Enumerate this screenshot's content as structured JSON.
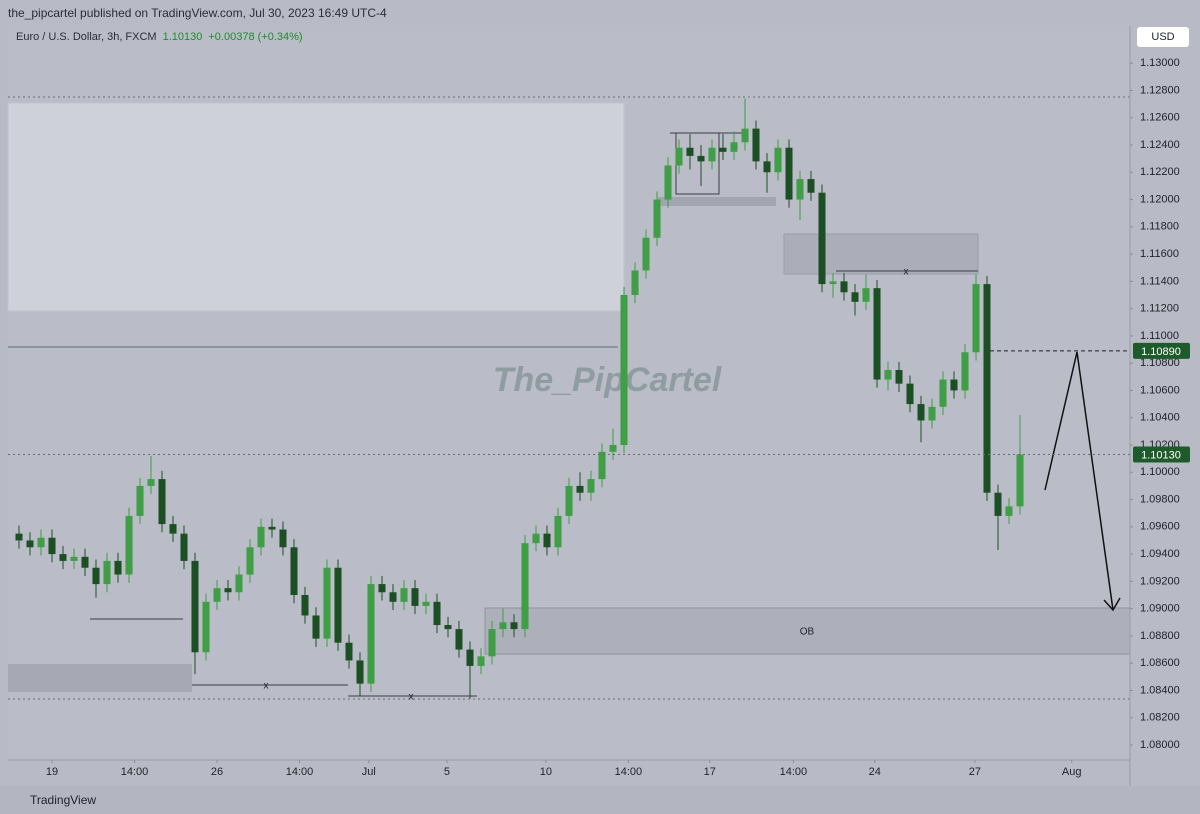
{
  "header": {
    "published": "the_pipcartel published on TradingView.com, Jul 30, 2023 16:49 UTC-4"
  },
  "footer": "TradingView",
  "chart_data": {
    "type": "candlestick",
    "title": "Euro / U.S. Dollar, 3h, FXCM",
    "last": "1.10130",
    "change": "+0.00378 (+0.34%)",
    "currency": "USD",
    "watermark": "The_PipCartel",
    "annotations": {
      "ob": "OB",
      "x_marks": [
        "x",
        "x",
        "x"
      ]
    },
    "up_color": "#3f9e46",
    "down_color": "#1d4f24",
    "open": [
      1.0955,
      1.095,
      1.0945,
      1.0952,
      1.094,
      1.0935,
      1.0938,
      1.093,
      1.0918,
      1.0935,
      1.0925,
      1.0968,
      1.099,
      1.0995,
      1.0962,
      1.0955,
      1.0935,
      1.0868,
      1.0905,
      1.0915,
      1.0912,
      1.0925,
      1.0945,
      1.096,
      1.0958,
      1.0945,
      1.091,
      1.0895,
      1.0878,
      1.093,
      1.0875,
      1.0862,
      1.0845,
      1.0918,
      1.0912,
      1.0905,
      1.0915,
      1.0902,
      1.0905,
      1.0888,
      1.0885,
      1.087,
      1.0858,
      1.0865,
      1.0885,
      1.089,
      1.0885,
      1.0948,
      1.0955,
      1.0945,
      1.0968,
      1.099,
      1.0985,
      1.0995,
      1.1015,
      1.102,
      1.113,
      1.1148,
      1.1172,
      1.12,
      1.1225,
      1.1238,
      1.1232,
      1.1228,
      1.1238,
      1.1235,
      1.1242,
      1.1252,
      1.1228,
      1.122,
      1.1238,
      1.12,
      1.1215,
      1.1205,
      1.1138,
      1.114,
      1.1132,
      1.1125,
      1.1135,
      1.1068,
      1.1075,
      1.1065,
      1.105,
      1.1038,
      1.1048,
      1.1068,
      1.106,
      1.1088,
      1.1138,
      1.0985,
      1.0968,
      1.0975
    ],
    "high": [
      1.0961,
      1.0956,
      1.0958,
      1.0958,
      1.0946,
      1.0944,
      1.0944,
      1.0936,
      1.0941,
      1.0941,
      1.0974,
      1.0996,
      1.1012,
      1.1001,
      1.0968,
      1.0961,
      1.0941,
      1.0911,
      1.0921,
      1.0921,
      1.0931,
      1.0951,
      1.0966,
      1.0966,
      1.0964,
      1.0951,
      1.0916,
      1.0901,
      1.0936,
      1.0936,
      1.0881,
      1.0868,
      1.0924,
      1.0924,
      1.0918,
      1.0921,
      1.0921,
      1.0911,
      1.0911,
      1.0894,
      1.0891,
      1.0876,
      1.0871,
      1.0891,
      1.09,
      1.0896,
      1.0954,
      1.0961,
      1.0961,
      1.0974,
      1.0996,
      1.1,
      1.1001,
      1.1021,
      1.1032,
      1.1136,
      1.1154,
      1.1178,
      1.1206,
      1.1231,
      1.1244,
      1.1248,
      1.124,
      1.1244,
      1.1248,
      1.125,
      1.1274,
      1.1258,
      1.1234,
      1.1244,
      1.1244,
      1.1221,
      1.1221,
      1.1211,
      1.1146,
      1.1146,
      1.1138,
      1.1145,
      1.1141,
      1.1081,
      1.1081,
      1.1071,
      1.1056,
      1.1054,
      1.1074,
      1.1074,
      1.1094,
      1.1145,
      1.1144,
      1.0991,
      1.0981,
      1.1042
    ],
    "low": [
      1.0944,
      1.0939,
      1.0939,
      1.0934,
      1.0929,
      1.0929,
      1.0924,
      1.0908,
      1.0912,
      1.0919,
      1.0919,
      1.0962,
      1.0984,
      1.0956,
      1.0949,
      1.0929,
      1.0852,
      1.0862,
      1.0899,
      1.0906,
      1.0906,
      1.0919,
      1.0939,
      1.0952,
      1.0939,
      1.0904,
      1.0889,
      1.0872,
      1.0872,
      1.0869,
      1.0856,
      1.0836,
      1.0839,
      1.0906,
      1.0899,
      1.0899,
      1.0896,
      1.0896,
      1.0882,
      1.0879,
      1.0864,
      1.0834,
      1.0852,
      1.0859,
      1.0879,
      1.0879,
      1.0879,
      1.0942,
      1.0939,
      1.0939,
      1.0962,
      1.0979,
      1.0979,
      1.0989,
      1.1009,
      1.1014,
      1.1124,
      1.1142,
      1.1166,
      1.1194,
      1.1219,
      1.1222,
      1.121,
      1.1222,
      1.1229,
      1.1229,
      1.1236,
      1.1222,
      1.1205,
      1.1214,
      1.1194,
      1.1185,
      1.1199,
      1.1132,
      1.1128,
      1.1126,
      1.1115,
      1.1119,
      1.1062,
      1.106,
      1.1059,
      1.1044,
      1.1022,
      1.1032,
      1.1042,
      1.1054,
      1.1054,
      1.1082,
      1.0979,
      1.0943,
      1.0962,
      1.0969
    ],
    "close": [
      1.095,
      1.0945,
      1.0952,
      1.094,
      1.0935,
      1.0938,
      1.093,
      1.0918,
      1.0935,
      1.0925,
      1.0968,
      1.099,
      1.0995,
      1.0962,
      1.0955,
      1.0935,
      1.0868,
      1.0905,
      1.0915,
      1.0912,
      1.0925,
      1.0945,
      1.096,
      1.0958,
      1.0945,
      1.091,
      1.0895,
      1.0878,
      1.093,
      1.0875,
      1.0862,
      1.0845,
      1.0918,
      1.0912,
      1.0905,
      1.0915,
      1.0902,
      1.0905,
      1.0888,
      1.0885,
      1.087,
      1.0858,
      1.0865,
      1.0885,
      1.089,
      1.0885,
      1.0948,
      1.0955,
      1.0945,
      1.0968,
      1.099,
      1.0985,
      1.0995,
      1.1015,
      1.102,
      1.113,
      1.1148,
      1.1172,
      1.12,
      1.1225,
      1.1238,
      1.1232,
      1.1228,
      1.1238,
      1.1235,
      1.1242,
      1.1252,
      1.1228,
      1.122,
      1.1238,
      1.12,
      1.1215,
      1.1205,
      1.1138,
      1.114,
      1.1132,
      1.1125,
      1.1135,
      1.1068,
      1.1075,
      1.1065,
      1.105,
      1.1038,
      1.1048,
      1.1068,
      1.106,
      1.1088,
      1.1138,
      1.0985,
      1.0968,
      1.0975,
      1.1013
    ],
    "price_lines": [
      {
        "value": 1.1089,
        "label": "1.10890"
      },
      {
        "value": 1.1013,
        "label": "1.10130"
      }
    ],
    "xlim": [
      -1,
      101
    ],
    "xticks": [
      {
        "value": 3.0,
        "label": "19"
      },
      {
        "value": 10.5,
        "label": "14:00"
      },
      {
        "value": 18.0,
        "label": "26"
      },
      {
        "value": 25.5,
        "label": "14:00"
      },
      {
        "value": 31.8,
        "label": "Jul"
      },
      {
        "value": 38.9,
        "label": "5"
      },
      {
        "value": 47.9,
        "label": "10"
      },
      {
        "value": 55.4,
        "label": "14:00"
      },
      {
        "value": 62.8,
        "label": "17"
      },
      {
        "value": 70.4,
        "label": "14:00"
      },
      {
        "value": 77.8,
        "label": "24"
      },
      {
        "value": 86.9,
        "label": "27"
      },
      {
        "value": 95.7,
        "label": "Aug"
      }
    ],
    "ylim": [
      1.0789,
      1.1328
    ],
    "yticks": [
      {
        "value": 1.13,
        "label": "1.13000"
      },
      {
        "value": 1.128,
        "label": "1.12800"
      },
      {
        "value": 1.126,
        "label": "1.12600"
      },
      {
        "value": 1.124,
        "label": "1.12400"
      },
      {
        "value": 1.122,
        "label": "1.12200"
      },
      {
        "value": 1.12,
        "label": "1.12000"
      },
      {
        "value": 1.118,
        "label": "1.11800"
      },
      {
        "value": 1.116,
        "label": "1.11600"
      },
      {
        "value": 1.114,
        "label": "1.11400"
      },
      {
        "value": 1.112,
        "label": "1.11200"
      },
      {
        "value": 1.11,
        "label": "1.11000"
      },
      {
        "value": 1.108,
        "label": "1.10800"
      },
      {
        "value": 1.106,
        "label": "1.10600"
      },
      {
        "value": 1.104,
        "label": "1.10400"
      },
      {
        "value": 1.102,
        "label": "1.10200"
      },
      {
        "value": 1.1,
        "label": "1.10000"
      },
      {
        "value": 1.098,
        "label": "1.09800"
      },
      {
        "value": 1.096,
        "label": "1.09600"
      },
      {
        "value": 1.094,
        "label": "1.09400"
      },
      {
        "value": 1.092,
        "label": "1.09200"
      },
      {
        "value": 1.09,
        "label": "1.09000"
      },
      {
        "value": 1.088,
        "label": "1.08800"
      },
      {
        "value": 1.086,
        "label": "1.08600"
      },
      {
        "value": 1.084,
        "label": "1.08400"
      },
      {
        "value": 1.082,
        "label": "1.08200"
      },
      {
        "value": 1.08,
        "label": "1.08000"
      }
    ],
    "grid": false
  }
}
